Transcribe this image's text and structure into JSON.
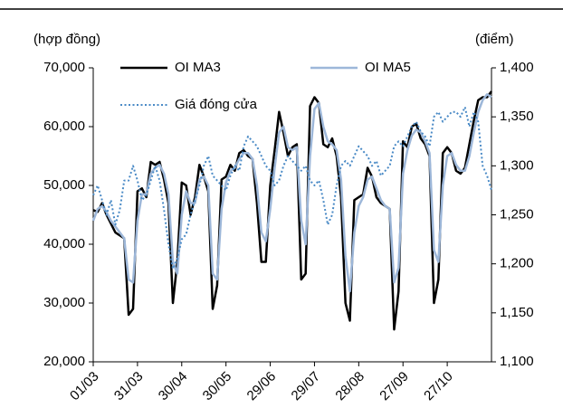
{
  "chart_data": {
    "type": "line",
    "y_label": "(hợp đồng)",
    "y2_label": "(điểm)",
    "categories": [
      "01/03",
      null,
      null,
      null,
      null,
      null,
      null,
      null,
      null,
      null,
      "31/03",
      null,
      null,
      null,
      null,
      null,
      null,
      null,
      null,
      null,
      "30/04",
      null,
      null,
      null,
      null,
      null,
      null,
      null,
      null,
      null,
      "30/05",
      null,
      null,
      null,
      null,
      null,
      null,
      null,
      null,
      null,
      "29/06",
      null,
      null,
      null,
      null,
      null,
      null,
      null,
      null,
      null,
      "29/07",
      null,
      null,
      null,
      null,
      null,
      null,
      null,
      null,
      null,
      "28/08",
      null,
      null,
      null,
      null,
      null,
      null,
      null,
      null,
      null,
      "27/09",
      null,
      null,
      null,
      null,
      null,
      null,
      null,
      null,
      null,
      "27/10",
      null,
      null,
      null,
      null,
      null,
      null,
      null,
      null,
      null,
      null
    ],
    "ylim": [
      20000,
      70000
    ],
    "yticks": [
      {
        "value": 20000,
        "label": "20,000"
      },
      {
        "value": 30000,
        "label": "30,000"
      },
      {
        "value": 40000,
        "label": "40,000"
      },
      {
        "value": 50000,
        "label": "50,000"
      },
      {
        "value": 60000,
        "label": "60,000"
      },
      {
        "value": 70000,
        "label": "70,000"
      }
    ],
    "y2lim": [
      1100,
      1400
    ],
    "y2ticks": [
      {
        "value": 1100,
        "label": "1,100"
      },
      {
        "value": 1150,
        "label": "1,150"
      },
      {
        "value": 1200,
        "label": "1,200"
      },
      {
        "value": 1250,
        "label": "1,250"
      },
      {
        "value": 1300,
        "label": "1,300"
      },
      {
        "value": 1350,
        "label": "1,350"
      },
      {
        "value": 1400,
        "label": "1,400"
      }
    ],
    "series": [
      {
        "name": "OI MA3",
        "color": "#000000",
        "width": 2.5,
        "style": "solid",
        "values": [
          45800,
          45500,
          47000,
          45000,
          43500,
          42000,
          41500,
          41000,
          28000,
          29000,
          49000,
          49500,
          48000,
          54000,
          53500,
          54000,
          51000,
          47000,
          30000,
          37000,
          50500,
          50000,
          45000,
          48000,
          53500,
          51500,
          49000,
          29000,
          33000,
          51000,
          51500,
          53500,
          52500,
          55500,
          56000,
          55000,
          54500,
          47000,
          37000,
          37000,
          50000,
          56000,
          62500,
          59000,
          55000,
          56500,
          57000,
          34000,
          35000,
          63500,
          65000,
          64000,
          57000,
          56500,
          58000,
          55000,
          48000,
          30000,
          27000,
          47500,
          48000,
          48500,
          53000,
          51500,
          48000,
          47000,
          46500,
          46000,
          25500,
          32000,
          57500,
          56500,
          60000,
          60500,
          58000,
          57000,
          55000,
          30000,
          34000,
          55500,
          56500,
          55500,
          52500,
          52000,
          53000,
          57000,
          61000,
          64500,
          65000,
          65000,
          66000
        ]
      },
      {
        "name": "OI MA5",
        "color": "#9db7d9",
        "width": 2.5,
        "style": "solid",
        "values": [
          44000,
          46000,
          46500,
          45500,
          44000,
          43000,
          42000,
          41000,
          34000,
          33500,
          44000,
          48500,
          48500,
          52000,
          53000,
          53500,
          52000,
          48500,
          37000,
          35000,
          45000,
          49000,
          47000,
          47000,
          51000,
          51500,
          50000,
          35000,
          34000,
          46000,
          50500,
          52500,
          53000,
          54500,
          55500,
          55500,
          54500,
          50000,
          42000,
          40500,
          46000,
          53000,
          59000,
          60000,
          56500,
          56000,
          56500,
          44000,
          40000,
          55000,
          63000,
          64000,
          60000,
          57500,
          57000,
          56000,
          51000,
          38000,
          32000,
          42000,
          46500,
          48000,
          51000,
          51500,
          49500,
          47500,
          46500,
          46000,
          33500,
          36000,
          52000,
          56000,
          58500,
          59500,
          59000,
          57500,
          55500,
          39000,
          37000,
          50000,
          55000,
          55500,
          53500,
          52500,
          52500,
          55000,
          59000,
          62500,
          64500,
          65500,
          65000
        ]
      },
      {
        "name": "Giá đóng cửa",
        "color": "#4a8ac6",
        "width": 2,
        "style": "dotted",
        "axis": "y2",
        "values": [
          1270,
          1280,
          1265,
          1250,
          1265,
          1240,
          1255,
          1285,
          1285,
          1300,
          1285,
          1265,
          1270,
          1285,
          1300,
          1285,
          1255,
          1220,
          1195,
          1205,
          1225,
          1230,
          1250,
          1265,
          1280,
          1300,
          1310,
          1290,
          1285,
          1280,
          1275,
          1290,
          1300,
          1295,
          1320,
          1330,
          1325,
          1320,
          1310,
          1300,
          1295,
          1280,
          1285,
          1300,
          1310,
          1305,
          1300,
          1295,
          1300,
          1285,
          1280,
          1285,
          1265,
          1240,
          1250,
          1280,
          1300,
          1305,
          1300,
          1310,
          1320,
          1315,
          1310,
          1300,
          1305,
          1290,
          1295,
          1300,
          1320,
          1325,
          1320,
          1330,
          1340,
          1345,
          1335,
          1330,
          1320,
          1350,
          1355,
          1345,
          1350,
          1355,
          1355,
          1350,
          1360,
          1340,
          1355,
          1345,
          1300,
          1290,
          1275
        ]
      }
    ]
  }
}
